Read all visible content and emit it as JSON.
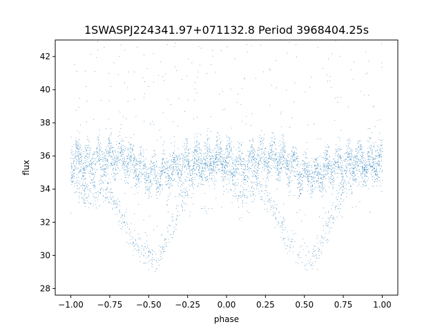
{
  "chart_data": {
    "type": "scatter",
    "title": "1SWASPJ224341.97+071132.8 Period 3968404.25s",
    "xlabel": "phase",
    "ylabel": "flux",
    "xlim": [
      -1.1,
      1.1
    ],
    "ylim": [
      27.6,
      43.0
    ],
    "x_ticks": [
      -1.0,
      -0.75,
      -0.5,
      -0.25,
      0.0,
      0.25,
      0.5,
      0.75,
      1.0
    ],
    "x_tick_labels": [
      "−1.00",
      "−0.75",
      "−0.50",
      "−0.25",
      "0.00",
      "0.25",
      "0.50",
      "0.75",
      "1.00"
    ],
    "y_ticks": [
      28,
      30,
      32,
      34,
      36,
      38,
      40,
      42
    ],
    "y_tick_labels": [
      "28",
      "30",
      "32",
      "34",
      "36",
      "38",
      "40",
      "42"
    ],
    "grid": false,
    "legend": "none",
    "marker_color": "#1f77b4",
    "series": [
      {
        "x": [
          -1.0,
          -0.95,
          -0.9,
          -0.85,
          -0.8,
          -0.75,
          -0.7,
          -0.65,
          -0.6,
          -0.55,
          -0.5,
          -0.45,
          -0.4,
          -0.35,
          -0.3,
          -0.25,
          -0.2,
          -0.15,
          -0.1,
          -0.05,
          0.0,
          0.05,
          0.1,
          0.15,
          0.2,
          0.25,
          0.3,
          0.35,
          0.4,
          0.45,
          0.5,
          0.55,
          0.6,
          0.65,
          0.7,
          0.75,
          0.8,
          0.85,
          0.9,
          0.95,
          1.0
        ],
        "baseline": [
          35.8,
          35.6,
          35.4,
          35.6,
          35.8,
          35.9,
          36.0,
          35.8,
          35.5,
          35.2,
          34.9,
          34.8,
          35.0,
          35.2,
          35.4,
          35.6,
          35.7,
          35.6,
          35.7,
          35.8,
          35.8,
          35.6,
          35.4,
          35.6,
          35.8,
          35.9,
          36.0,
          35.8,
          35.5,
          35.2,
          34.9,
          34.8,
          35.0,
          35.2,
          35.4,
          35.6,
          35.7,
          35.6,
          35.7,
          35.8,
          35.8
        ],
        "low_branch": [
          35.0,
          34.0,
          33.5,
          33.8,
          34.2,
          33.8,
          32.8,
          31.8,
          30.8,
          30.3,
          30.0,
          29.8,
          30.5,
          31.6,
          33.0,
          34.2,
          34.8,
          35.0,
          35.2,
          35.4,
          35.0,
          34.0,
          33.5,
          33.8,
          34.2,
          33.8,
          32.8,
          31.8,
          30.8,
          30.3,
          30.0,
          29.8,
          30.5,
          31.6,
          33.0,
          34.2,
          34.8,
          35.0,
          35.2,
          35.4,
          35.0
        ]
      }
    ]
  }
}
